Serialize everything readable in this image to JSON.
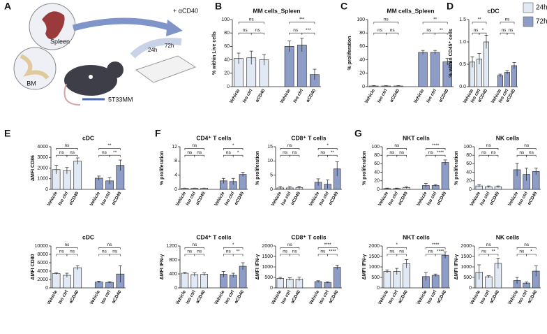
{
  "panel_labels": [
    "A",
    "B",
    "C",
    "D",
    "E",
    "F",
    "G"
  ],
  "illustration": {
    "organ1": "Spleen",
    "organ2": "BM",
    "treatment": "+ αCD40",
    "time1": "24h",
    "time2": "72h",
    "cells": "5T33MM"
  },
  "legend": [
    {
      "name": "24h",
      "color": "#e1eaf4"
    },
    {
      "name": "72h",
      "color": "#8d9dc8"
    }
  ],
  "chart_data": [
    {
      "type": "bar",
      "title": "MM cells_Spleen",
      "ylabel": "% within Live cells",
      "categories": [
        "Vehicle",
        "Iso ctrl",
        "αCD40",
        "Vehicle",
        "Iso ctrl",
        "αCD40"
      ],
      "values": [
        42,
        43,
        40,
        60,
        62,
        18
      ],
      "errors": [
        8,
        10,
        8,
        8,
        10,
        8
      ],
      "ylim": [
        0,
        100
      ],
      "yticks": [
        0,
        20,
        40,
        60,
        80,
        100
      ],
      "comparisons": [
        {
          "pair": [
            0,
            1
          ],
          "label": "ns"
        },
        {
          "pair": [
            1,
            2
          ],
          "label": "ns"
        },
        {
          "pair": [
            0,
            2
          ],
          "label": "ns"
        },
        {
          "pair": [
            3,
            4
          ],
          "label": "ns"
        },
        {
          "pair": [
            4,
            5
          ],
          "label": "***"
        },
        {
          "pair": [
            3,
            5
          ],
          "label": "***"
        }
      ]
    },
    {
      "type": "bar",
      "title": "MM cells_Spleen",
      "ylabel": "% proliferation",
      "categories": [
        "Vehicle",
        "Iso ctrl",
        "αCD40",
        "Vehicle",
        "Iso ctrl",
        "αCD40"
      ],
      "values": [
        1,
        1,
        1,
        51,
        51,
        37
      ],
      "errors": [
        0.5,
        0.5,
        0.5,
        3,
        3,
        5
      ],
      "ylim": [
        0,
        100
      ],
      "yticks": [
        0,
        20,
        40,
        60,
        80,
        100
      ],
      "comparisons": [
        {
          "pair": [
            0,
            1
          ],
          "label": "ns"
        },
        {
          "pair": [
            1,
            2
          ],
          "label": "ns"
        },
        {
          "pair": [
            0,
            2
          ],
          "label": "ns"
        },
        {
          "pair": [
            3,
            4
          ],
          "label": "ns"
        },
        {
          "pair": [
            4,
            5
          ],
          "label": "**"
        },
        {
          "pair": [
            3,
            5
          ],
          "label": "**"
        }
      ]
    },
    {
      "type": "bar",
      "title": "cDC",
      "ylabel": "% within CD45⁺ cells",
      "categories": [
        "Vehicle",
        "Iso ctrl",
        "αCD40",
        "Vehicle",
        "Iso ctrl",
        "αCD40"
      ],
      "values": [
        0.55,
        0.62,
        1.0,
        0.25,
        0.32,
        0.47
      ],
      "errors": [
        0.12,
        0.12,
        0.15,
        0.03,
        0.04,
        0.07
      ],
      "ylim": [
        0,
        1.5
      ],
      "yticks": [
        {
          "value": 0,
          "label": "0.0"
        },
        0.5,
        {
          "value": 1,
          "label": "1.0"
        },
        1.5
      ],
      "comparisons": [
        {
          "pair": [
            0,
            1
          ],
          "label": "ns"
        },
        {
          "pair": [
            1,
            2
          ],
          "label": "*"
        },
        {
          "pair": [
            0,
            2
          ],
          "label": "**"
        },
        {
          "pair": [
            3,
            4
          ],
          "label": "ns"
        },
        {
          "pair": [
            4,
            5
          ],
          "label": "ns"
        },
        {
          "pair": [
            3,
            5
          ],
          "label": "ns"
        }
      ]
    },
    {
      "type": "bar",
      "title": "cDC",
      "ylabel": "ΔMFI CD86",
      "categories": [
        "Vehicle",
        "Iso ctrl",
        "αCD40",
        "Vehicle",
        "Iso ctrl",
        "αCD40"
      ],
      "values": [
        1850,
        1750,
        2650,
        1050,
        800,
        2250
      ],
      "errors": [
        400,
        300,
        300,
        200,
        300,
        500
      ],
      "ylim": [
        0,
        4000
      ],
      "yticks": [
        0,
        1000,
        2000,
        3000,
        4000
      ],
      "comparisons": [
        {
          "pair": [
            0,
            1
          ],
          "label": "ns"
        },
        {
          "pair": [
            1,
            2
          ],
          "label": "ns"
        },
        {
          "pair": [
            0,
            2
          ],
          "label": "ns"
        },
        {
          "pair": [
            3,
            4
          ],
          "label": "ns"
        },
        {
          "pair": [
            4,
            5
          ],
          "label": "**"
        },
        {
          "pair": [
            3,
            5
          ],
          "label": "**"
        }
      ]
    },
    {
      "type": "bar",
      "title": "cDC",
      "ylabel": "ΔMFI CD80",
      "categories": [
        "Vehicle",
        "Iso ctrl",
        "αCD40",
        "Vehicle",
        "Iso ctrl",
        "αCD40"
      ],
      "values": [
        3400,
        3000,
        4800,
        1400,
        1300,
        3300
      ],
      "errors": [
        200,
        500,
        500,
        200,
        200,
        2000
      ],
      "ylim": [
        0,
        10000
      ],
      "yticks": [
        0,
        2000,
        4000,
        6000,
        8000,
        10000
      ],
      "comparisons": [
        {
          "pair": [
            0,
            1
          ],
          "label": "ns"
        },
        {
          "pair": [
            1,
            2
          ],
          "label": "ns"
        },
        {
          "pair": [
            0,
            2
          ],
          "label": "ns"
        },
        {
          "pair": [
            3,
            4
          ],
          "label": "ns"
        },
        {
          "pair": [
            4,
            5
          ],
          "label": "ns"
        },
        {
          "pair": [
            3,
            5
          ],
          "label": "ns"
        }
      ]
    },
    {
      "type": "bar",
      "title": "CD4⁺ T cells",
      "ylabel": "% proliferation",
      "categories": [
        "Vehicle",
        "Iso ctrl",
        "αCD40",
        "Vehicle",
        "Iso ctrl",
        "αCD40"
      ],
      "values": [
        0.3,
        0.3,
        0.3,
        2.4,
        2.2,
        4.2
      ],
      "errors": [
        0.05,
        0.05,
        0.05,
        0.7,
        0.9,
        0.6
      ],
      "ylim": [
        0,
        12
      ],
      "yticks": [
        0,
        4,
        8,
        12
      ],
      "comparisons": [
        {
          "pair": [
            0,
            1
          ],
          "label": "ns"
        },
        {
          "pair": [
            1,
            2
          ],
          "label": "ns"
        },
        {
          "pair": [
            0,
            2
          ],
          "label": "ns"
        },
        {
          "pair": [
            3,
            4
          ],
          "label": "ns"
        },
        {
          "pair": [
            4,
            5
          ],
          "label": "*"
        },
        {
          "pair": [
            3,
            5
          ],
          "label": "*"
        }
      ]
    },
    {
      "type": "bar",
      "title": "CD8⁺ T cells",
      "ylabel": "% proliferation",
      "categories": [
        "Vehicle",
        "Iso ctrl",
        "αCD40",
        "Vehicle",
        "Iso ctrl",
        "αCD40"
      ],
      "values": [
        0.5,
        0.5,
        0.6,
        2.5,
        1.8,
        7.2
      ],
      "errors": [
        0.5,
        0.5,
        0.5,
        1.2,
        1.5,
        2.5
      ],
      "ylim": [
        0,
        15
      ],
      "yticks": [
        0,
        5,
        10,
        15
      ],
      "comparisons": [
        {
          "pair": [
            0,
            1
          ],
          "label": "ns"
        },
        {
          "pair": [
            1,
            2
          ],
          "label": "ns"
        },
        {
          "pair": [
            0,
            2
          ],
          "label": "ns"
        },
        {
          "pair": [
            3,
            4
          ],
          "label": "ns"
        },
        {
          "pair": [
            4,
            5
          ],
          "label": "**"
        },
        {
          "pair": [
            3,
            5
          ],
          "label": "*"
        }
      ]
    },
    {
      "type": "bar",
      "title": "CD4⁺ T cells",
      "ylabel": "ΔMFI IFN-γ",
      "categories": [
        "Vehicle",
        "Iso ctrl",
        "αCD40",
        "Vehicle",
        "Iso ctrl",
        "αCD40"
      ],
      "values": [
        420,
        380,
        390,
        390,
        360,
        620
      ],
      "errors": [
        20,
        50,
        40,
        80,
        60,
        100
      ],
      "ylim": [
        0,
        1200
      ],
      "yticks": [
        0,
        400,
        800,
        1200
      ],
      "comparisons": [
        {
          "pair": [
            0,
            1
          ],
          "label": "ns"
        },
        {
          "pair": [
            1,
            2
          ],
          "label": "ns"
        },
        {
          "pair": [
            0,
            2
          ],
          "label": "ns"
        },
        {
          "pair": [
            3,
            4
          ],
          "label": "ns"
        },
        {
          "pair": [
            4,
            5
          ],
          "label": "**"
        },
        {
          "pair": [
            3,
            5
          ],
          "label": "*"
        }
      ]
    },
    {
      "type": "bar",
      "title": "CD8⁺ T cells",
      "ylabel": "ΔMFI IFN-γ",
      "categories": [
        "Vehicle",
        "Iso ctrl",
        "αCD40",
        "Vehicle",
        "Iso ctrl",
        "αCD40"
      ],
      "values": [
        450,
        420,
        420,
        300,
        260,
        980
      ],
      "errors": [
        50,
        60,
        90,
        40,
        30,
        100
      ],
      "ylim": [
        0,
        2000
      ],
      "yticks": [
        0,
        500,
        1000,
        1500,
        2000
      ],
      "comparisons": [
        {
          "pair": [
            0,
            1
          ],
          "label": "ns"
        },
        {
          "pair": [
            1,
            2
          ],
          "label": "ns"
        },
        {
          "pair": [
            0,
            2
          ],
          "label": "ns"
        },
        {
          "pair": [
            3,
            4
          ],
          "label": "ns"
        },
        {
          "pair": [
            4,
            5
          ],
          "label": "****"
        },
        {
          "pair": [
            3,
            5
          ],
          "label": "****"
        }
      ]
    },
    {
      "type": "bar",
      "title": "NKT cells",
      "ylabel": "% proliferation",
      "categories": [
        "Vehicle",
        "Iso ctrl",
        "αCD40",
        "Vehicle",
        "Iso ctrl",
        "αCD40"
      ],
      "values": [
        2,
        2,
        4,
        9,
        9,
        63
      ],
      "errors": [
        1,
        1,
        2,
        5,
        2,
        6
      ],
      "ylim": [
        0,
        100
      ],
      "yticks": [
        0,
        20,
        40,
        60,
        80,
        100
      ],
      "comparisons": [
        {
          "pair": [
            0,
            1
          ],
          "label": "ns"
        },
        {
          "pair": [
            1,
            2
          ],
          "label": "ns"
        },
        {
          "pair": [
            0,
            2
          ],
          "label": "ns"
        },
        {
          "pair": [
            3,
            4
          ],
          "label": "ns"
        },
        {
          "pair": [
            4,
            5
          ],
          "label": "****"
        },
        {
          "pair": [
            3,
            5
          ],
          "label": "****"
        }
      ]
    },
    {
      "type": "bar",
      "title": "NK cells",
      "ylabel": "% proliferation",
      "categories": [
        "Vehicle",
        "Iso ctrl",
        "αCD40",
        "Vehicle",
        "Iso ctrl",
        "αCD40"
      ],
      "values": [
        8,
        6,
        6,
        46,
        35,
        42
      ],
      "errors": [
        3,
        2,
        2,
        15,
        15,
        8
      ],
      "ylim": [
        0,
        100
      ],
      "yticks": [
        0,
        20,
        40,
        60,
        80,
        100
      ],
      "comparisons": [
        {
          "pair": [
            0,
            1
          ],
          "label": "ns"
        },
        {
          "pair": [
            1,
            2
          ],
          "label": "ns"
        },
        {
          "pair": [
            0,
            2
          ],
          "label": "ns"
        },
        {
          "pair": [
            3,
            4
          ],
          "label": "ns"
        },
        {
          "pair": [
            4,
            5
          ],
          "label": "ns"
        },
        {
          "pair": [
            3,
            5
          ],
          "label": "ns"
        }
      ]
    },
    {
      "type": "bar",
      "title": "NKT cells",
      "ylabel": "ΔMFI IFN-γ",
      "categories": [
        "Vehicle",
        "Iso ctrl",
        "αCD40",
        "Vehicle",
        "Iso ctrl",
        "αCD40"
      ],
      "values": [
        780,
        780,
        1150,
        540,
        600,
        1560
      ],
      "errors": [
        80,
        150,
        200,
        200,
        60,
        150
      ],
      "ylim": [
        0,
        2000
      ],
      "yticks": [
        0,
        500,
        1000,
        1500,
        2000
      ],
      "comparisons": [
        {
          "pair": [
            0,
            1
          ],
          "label": "ns"
        },
        {
          "pair": [
            1,
            2
          ],
          "label": "ns"
        },
        {
          "pair": [
            0,
            2
          ],
          "label": "*"
        },
        {
          "pair": [
            3,
            4
          ],
          "label": "ns"
        },
        {
          "pair": [
            4,
            5
          ],
          "label": "****"
        },
        {
          "pair": [
            3,
            5
          ],
          "label": "****"
        }
      ]
    },
    {
      "type": "bar",
      "title": "NK cells",
      "ylabel": "ΔMFI IFN-γ",
      "categories": [
        "Vehicle",
        "Iso ctrl",
        "αCD40",
        "Vehicle",
        "Iso ctrl",
        "αCD40"
      ],
      "values": [
        750,
        530,
        1170,
        350,
        230,
        800
      ],
      "errors": [
        350,
        50,
        250,
        150,
        50,
        250
      ],
      "ylim": [
        0,
        2000
      ],
      "yticks": [
        0,
        500,
        1000,
        1500,
        2000
      ],
      "comparisons": [
        {
          "pair": [
            0,
            1
          ],
          "label": "ns"
        },
        {
          "pair": [
            1,
            2
          ],
          "label": "**"
        },
        {
          "pair": [
            0,
            2
          ],
          "label": "ns"
        },
        {
          "pair": [
            3,
            4
          ],
          "label": "ns"
        },
        {
          "pair": [
            4,
            5
          ],
          "label": "*"
        },
        {
          "pair": [
            3,
            5
          ],
          "label": "ns"
        }
      ]
    }
  ]
}
